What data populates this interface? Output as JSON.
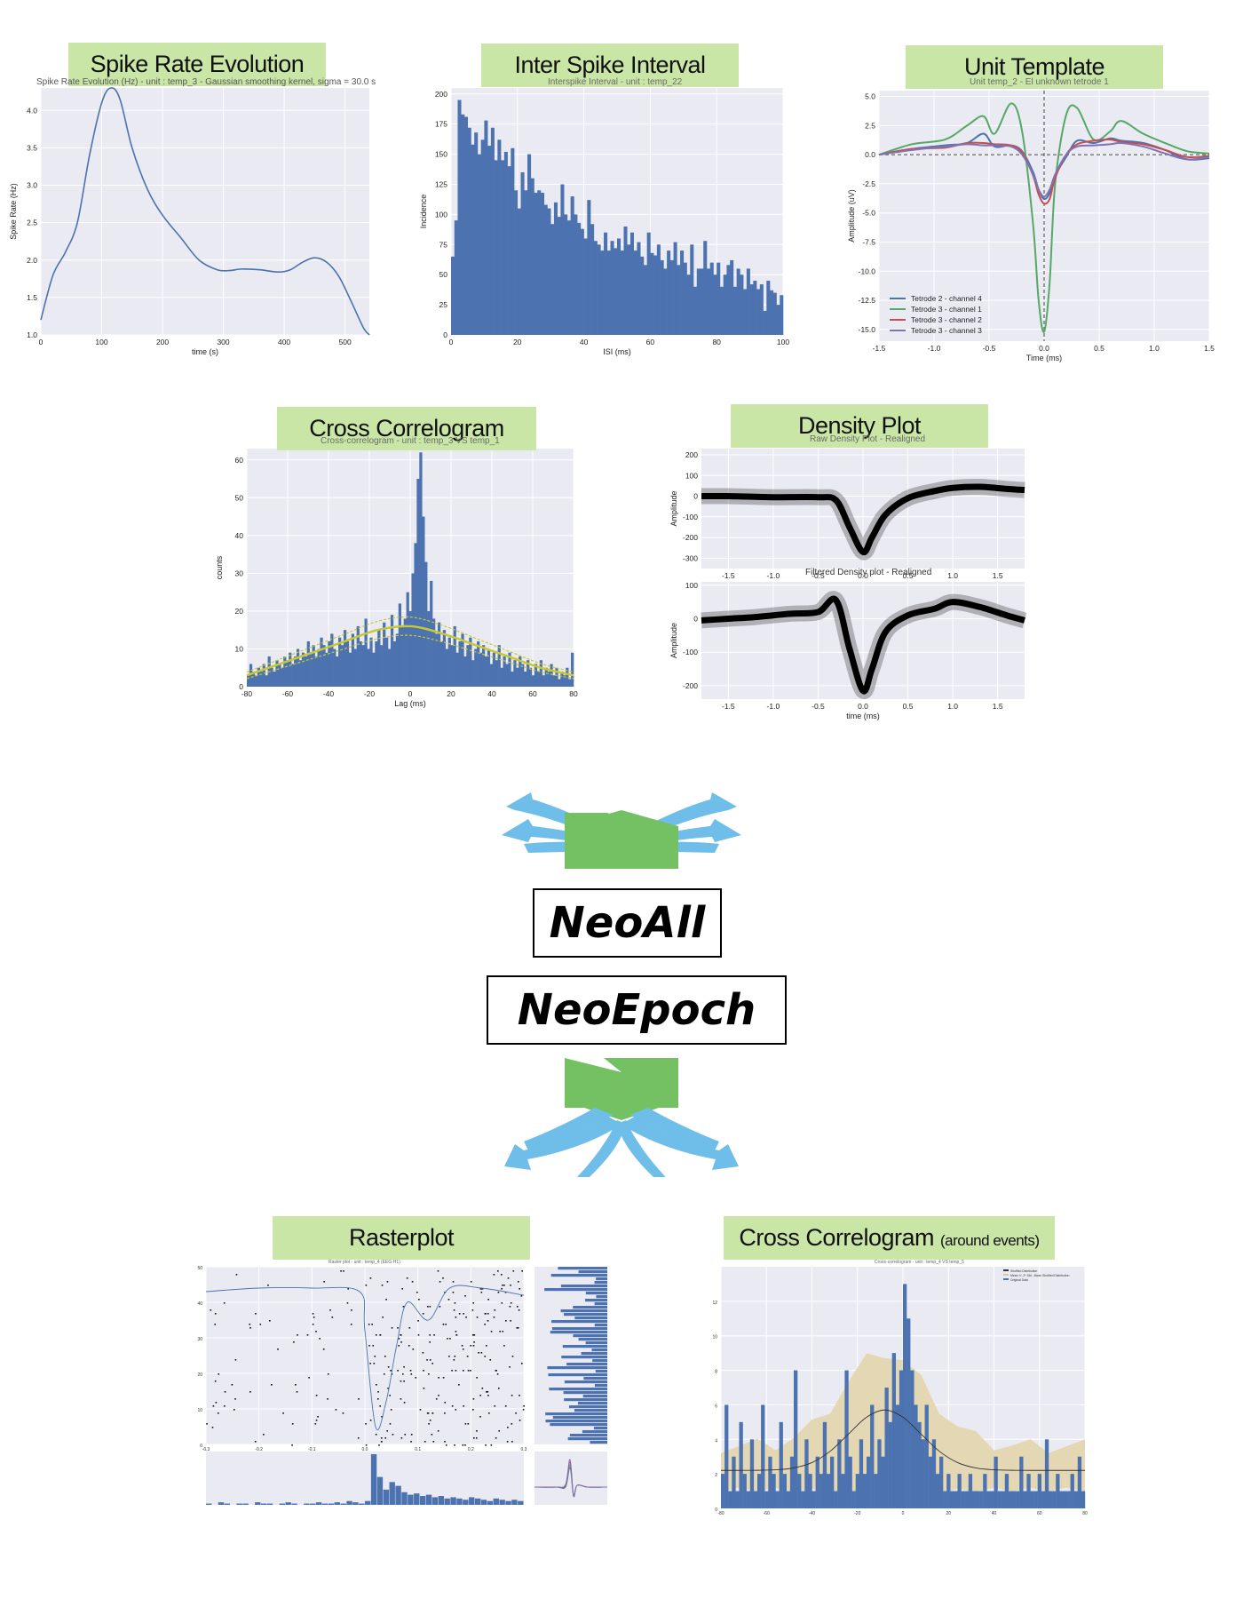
{
  "panels": {
    "spike_rate": {
      "banner": "Spike Rate Evolution",
      "subtitle": "Spike Rate Evolution (Hz) - unit : temp_3 - Gaussian smoothing kernel, sigma = 30.0 s",
      "xlabel": "time (s)",
      "ylabel": "Spike Rate (Hz)"
    },
    "isi": {
      "banner": "Inter Spike Interval",
      "subtitle": "Interspike Interval - unit : temp_22",
      "xlabel": "ISI (ms)",
      "ylabel": "Incidence"
    },
    "unit_template": {
      "banner": "Unit Template",
      "subtitle": "Unit temp_2 - El unknown tetrode 1",
      "xlabel": "Time (ms)",
      "ylabel": "Amplitude (uV)"
    },
    "cross_corr": {
      "banner": "Cross Correlogram",
      "subtitle": "Cross-correlogram - unit : temp_3 VS temp_1",
      "xlabel": "Lag (ms)",
      "ylabel": "counts"
    },
    "density": {
      "banner": "Density Plot",
      "subtitle_top": "Raw Density Plot - Realigned",
      "subtitle_bottom": "Filtered Density plot - Realigned",
      "ylabel": "Amplitude",
      "xlabel": "time (ms)"
    },
    "raster": {
      "banner": "Rasterplot",
      "subtitle": "Raster plot - unit : temp_4 (EEG-H1)"
    },
    "cross_corr_events": {
      "banner_main": "Cross Correlogram",
      "banner_small": "(around events)",
      "subtitle": "Cross-correlogram - unit : temp_4 VS temp_5",
      "legend": [
        "Shuffled Distribution",
        "Mean +/- 2* Std - Mean Shuffled Distribution",
        "Original Data"
      ]
    }
  },
  "boxes": {
    "neoall": "NeoAll",
    "neoepoch": "NeoEpoch"
  },
  "colors": {
    "banner": "#c9e6a6",
    "arrow_blue": "#6fbde9",
    "arrow_green": "#73c162",
    "bar": "#4c72b0",
    "grid_bg": "#eaeaf2",
    "template_green": "#55a868",
    "template_red": "#c44e52",
    "template_purple": "#8172b2",
    "fit_yellow": "#c8c832",
    "shuffle_band": "#e4d7b4"
  },
  "chart_data": [
    {
      "id": "spike_rate",
      "type": "line",
      "title": "Spike Rate Evolution (Hz) - unit : temp_3 - Gaussian smoothing kernel, sigma = 30.0 s",
      "xlabel": "time (s)",
      "ylabel": "Spike Rate (Hz)",
      "xlim": [
        0,
        540
      ],
      "ylim": [
        1.0,
        4.3
      ],
      "xticks": [
        0,
        100,
        200,
        300,
        400,
        500
      ],
      "yticks": [
        1.0,
        1.5,
        2.0,
        2.5,
        3.0,
        3.5,
        4.0
      ],
      "x": [
        0,
        20,
        40,
        60,
        80,
        100,
        115,
        130,
        150,
        175,
        200,
        230,
        260,
        290,
        310,
        330,
        360,
        390,
        410,
        430,
        450,
        470,
        490,
        510,
        530,
        540
      ],
      "y": [
        1.2,
        1.8,
        2.1,
        2.5,
        3.4,
        4.1,
        4.3,
        4.15,
        3.5,
        2.95,
        2.6,
        2.3,
        2.0,
        1.87,
        1.86,
        1.88,
        1.87,
        1.84,
        1.87,
        1.97,
        2.03,
        1.97,
        1.78,
        1.45,
        1.1,
        1.0
      ]
    },
    {
      "id": "isi",
      "type": "bar",
      "title": "Interspike Interval - unit : temp_22",
      "xlabel": "ISI (ms)",
      "ylabel": "Incidence",
      "xlim": [
        0,
        100
      ],
      "ylim": [
        0,
        205
      ],
      "xticks": [
        0,
        20,
        40,
        60,
        80,
        100
      ],
      "yticks": [
        0,
        25,
        50,
        75,
        100,
        125,
        150,
        175,
        200
      ],
      "values": [
        65,
        95,
        195,
        183,
        181,
        172,
        158,
        168,
        150,
        162,
        178,
        157,
        172,
        145,
        162,
        145,
        152,
        140,
        155,
        120,
        105,
        135,
        120,
        150,
        130,
        118,
        120,
        118,
        108,
        105,
        92,
        110,
        98,
        125,
        100,
        95,
        115,
        100,
        93,
        88,
        80,
        112,
        92,
        78,
        75,
        70,
        85,
        70,
        78,
        72,
        80,
        70,
        90,
        75,
        85,
        70,
        77,
        65,
        58,
        85,
        68,
        66,
        75,
        62,
        55,
        70,
        62,
        77,
        58,
        70,
        60,
        50,
        75,
        40,
        55,
        55,
        78,
        55,
        60,
        50,
        60,
        40,
        50,
        58,
        62,
        40,
        55,
        50,
        38,
        55,
        42,
        45,
        38,
        42,
        20,
        45,
        37,
        35,
        25,
        33
      ]
    },
    {
      "id": "unit_template",
      "type": "line",
      "title": "Unit temp_2 - El unknown tetrode 1",
      "xlabel": "Time (ms)",
      "ylabel": "Amplitude (uV)",
      "xlim": [
        -1.5,
        1.5
      ],
      "ylim": [
        -16,
        5.5
      ],
      "xticks": [
        -1.5,
        -1.0,
        -0.5,
        0.0,
        0.5,
        1.0,
        1.5
      ],
      "yticks": [
        5.0,
        2.5,
        0.0,
        -2.5,
        -5.0,
        -7.5,
        -10.0,
        -12.5,
        -15.0
      ],
      "x": [
        -1.5,
        -1.2,
        -0.9,
        -0.7,
        -0.55,
        -0.45,
        -0.3,
        -0.2,
        -0.1,
        -0.05,
        0.0,
        0.05,
        0.1,
        0.2,
        0.3,
        0.45,
        0.6,
        0.7,
        0.9,
        1.1,
        1.3,
        1.5
      ],
      "series": [
        {
          "name": "Tetrode 2 - channel 4",
          "color": "#4c72b0",
          "y": [
            0,
            0.5,
            0.8,
            1.0,
            1.8,
            0.7,
            0.8,
            0.3,
            -1.5,
            -3.0,
            -3.8,
            -3.3,
            -1.8,
            -0.2,
            1.2,
            1.0,
            1.4,
            1.2,
            1.0,
            0.4,
            -0.4,
            -0.3
          ]
        },
        {
          "name": "Tetrode 3 - channel 1",
          "color": "#55a868",
          "y": [
            0,
            0.9,
            1.3,
            2.5,
            3.3,
            1.8,
            4.4,
            2.0,
            -6.0,
            -12.5,
            -15.2,
            -11.0,
            -2.5,
            3.4,
            4.0,
            1.3,
            2.0,
            2.9,
            1.8,
            1.0,
            0.3,
            0.1
          ]
        },
        {
          "name": "Tetrode 3 - channel 2",
          "color": "#c44e52",
          "y": [
            0,
            0.5,
            0.6,
            1.0,
            1.0,
            0.9,
            0.8,
            0.2,
            -1.8,
            -3.4,
            -4.2,
            -3.8,
            -2.0,
            0.0,
            0.9,
            1.2,
            1.3,
            1.1,
            0.9,
            0.4,
            -0.2,
            -0.1
          ]
        },
        {
          "name": "Tetrode 3 - channel 3",
          "color": "#8172b2",
          "y": [
            0,
            0.4,
            0.7,
            0.9,
            0.8,
            0.8,
            0.7,
            0.0,
            -1.7,
            -3.0,
            -3.6,
            -3.0,
            -1.7,
            0.0,
            0.7,
            0.8,
            0.9,
            1.0,
            0.7,
            0.1,
            -0.4,
            -0.2
          ]
        }
      ]
    },
    {
      "id": "cross_corr",
      "type": "bar",
      "title": "Cross-correlogram - unit : temp_3 VS temp_1",
      "xlabel": "Lag (ms)",
      "ylabel": "counts",
      "xlim": [
        -80,
        80
      ],
      "ylim": [
        0,
        63
      ],
      "xticks": [
        -80,
        -60,
        -40,
        -20,
        0,
        20,
        40,
        60,
        80
      ],
      "yticks": [
        0,
        10,
        20,
        30,
        40,
        50,
        60
      ],
      "values": [
        3,
        6,
        4,
        3,
        5,
        4,
        6,
        3,
        8,
        5,
        4,
        7,
        6,
        5,
        8,
        7,
        9,
        6,
        8,
        10,
        7,
        9,
        8,
        12,
        9,
        11,
        8,
        10,
        13,
        11,
        9,
        12,
        14,
        10,
        8,
        13,
        11,
        15,
        12,
        9,
        14,
        10,
        16,
        12,
        11,
        18,
        10,
        13,
        9,
        12,
        15,
        11,
        17,
        13,
        10,
        19,
        12,
        14,
        22,
        16,
        18,
        25,
        20,
        30,
        38,
        55,
        62,
        45,
        33,
        20,
        28,
        18,
        14,
        17,
        12,
        15,
        10,
        13,
        11,
        16,
        9,
        12,
        14,
        8,
        11,
        13,
        7,
        10,
        12,
        9,
        11,
        8,
        10,
        6,
        9,
        7,
        11,
        5,
        8,
        6,
        9,
        4,
        7,
        5,
        8,
        6,
        4,
        7,
        5,
        3,
        6,
        4,
        7,
        3,
        5,
        4,
        6,
        3,
        5,
        2,
        4,
        3,
        5,
        2,
        9
      ],
      "fit_mean": [
        3,
        6,
        9,
        12,
        15,
        16,
        14,
        11,
        8,
        5,
        3
      ]
    },
    {
      "id": "density",
      "type": "line",
      "title": "Raw Density Plot - Realigned / Filtered Density plot - Realigned",
      "xlabel": "time (ms)",
      "ylabel": "Amplitude",
      "xlim": [
        -1.8,
        1.8
      ],
      "xticks": [
        -1.5,
        -1.0,
        -0.5,
        0.0,
        0.5,
        1.0,
        1.5
      ],
      "series": [
        {
          "name": "Raw",
          "ylim": [
            -350,
            230
          ],
          "yticks": [
            200,
            100,
            0,
            -100,
            -200,
            -300
          ],
          "x": [
            -1.8,
            -1.5,
            -1.0,
            -0.5,
            -0.3,
            -0.15,
            0.0,
            0.1,
            0.25,
            0.5,
            0.8,
            1.0,
            1.3,
            1.6,
            1.8
          ],
          "y": [
            0,
            0,
            -5,
            -5,
            -20,
            -150,
            -270,
            -200,
            -90,
            -10,
            25,
            40,
            45,
            35,
            30
          ]
        },
        {
          "name": "Filtered",
          "ylim": [
            -240,
            110
          ],
          "yticks": [
            100,
            0,
            -100,
            -200
          ],
          "x": [
            -1.8,
            -1.5,
            -1.2,
            -0.8,
            -0.5,
            -0.3,
            -0.15,
            0.0,
            0.1,
            0.25,
            0.5,
            0.8,
            1.0,
            1.3,
            1.6,
            1.8
          ],
          "y": [
            -5,
            0,
            5,
            15,
            20,
            55,
            -90,
            -215,
            -150,
            -40,
            10,
            30,
            50,
            35,
            10,
            -5
          ]
        }
      ]
    },
    {
      "id": "raster",
      "type": "scatter",
      "title": "Raster plot - unit : temp_4 (EEG-H1)",
      "xlim": [
        -0.3,
        0.3
      ],
      "ylim": [
        0,
        50
      ],
      "hist_values": [
        1,
        0,
        2,
        1,
        0,
        1,
        1,
        0,
        2,
        1,
        1,
        0,
        1,
        2,
        1,
        0,
        1,
        1,
        2,
        1,
        1,
        2,
        1,
        3,
        2,
        1,
        3,
        40,
        22,
        12,
        18,
        15,
        10,
        8,
        9,
        7,
        8,
        6,
        7,
        5,
        6,
        5,
        4,
        6,
        5,
        4,
        3,
        5,
        4,
        3,
        4,
        3
      ]
    },
    {
      "id": "cross_corr_events",
      "type": "bar",
      "title": "Cross-correlogram - unit : temp_4 VS temp_5",
      "xlim": [
        -80,
        80
      ],
      "ylim": [
        0,
        14
      ],
      "values": [
        2,
        6,
        1,
        3,
        1,
        5,
        2,
        1,
        4,
        1,
        2,
        6,
        1,
        3,
        2,
        1,
        5,
        2,
        1,
        3,
        8,
        2,
        1,
        4,
        2,
        1,
        3,
        2,
        5,
        2,
        3,
        1,
        4,
        2,
        8,
        3,
        1,
        2,
        4,
        2,
        3,
        6,
        2,
        4,
        3,
        7,
        5,
        9,
        6,
        8,
        13,
        11,
        8,
        6,
        5,
        4,
        6,
        3,
        4,
        2,
        3,
        1,
        2,
        1,
        1,
        2,
        1,
        1,
        2,
        1,
        1,
        1,
        2,
        1,
        1,
        3,
        1,
        1,
        2,
        1,
        1,
        1,
        3,
        1,
        2,
        1,
        1,
        2,
        1,
        4,
        1,
        1,
        2,
        1,
        1,
        1,
        2,
        1,
        3,
        1
      ]
    }
  ]
}
